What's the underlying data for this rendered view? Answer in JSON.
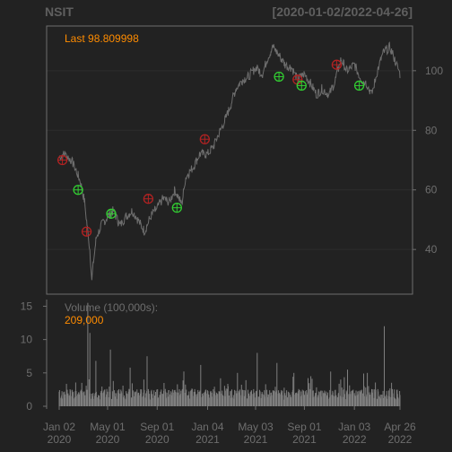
{
  "header": {
    "ticker": "NSIT",
    "date_range": "[2020-01-02/2022-04-26]"
  },
  "chart_data": [
    {
      "type": "line",
      "title": "NSIT",
      "subtitle": "[2020-01-02/2022-04-26]",
      "annotation": "Last 98.809998",
      "x_tick_labels": [
        [
          "Jan 02",
          "2020"
        ],
        [
          "May 01",
          "2020"
        ],
        [
          "Sep 01",
          "2020"
        ],
        [
          "Jan 04",
          "2021"
        ],
        [
          "May 03",
          "2021"
        ],
        [
          "Sep 01",
          "2021"
        ],
        [
          "Jan 03",
          "2022"
        ],
        [
          "Apr 26",
          "2022"
        ]
      ],
      "x_ticks": [
        "2020-01-02",
        "2020-05-01",
        "2020-09-01",
        "2021-01-04",
        "2021-05-03",
        "2021-09-01",
        "2022-01-03",
        "2022-04-26"
      ],
      "xlim": [
        "2020-01-02",
        "2022-04-26"
      ],
      "ylim": [
        25,
        115
      ],
      "y_ticks": [
        40,
        60,
        80,
        100
      ],
      "grid": true,
      "series": [
        {
          "x": [
            "2020-01-02",
            "2020-01-15",
            "2020-02-01",
            "2020-02-15",
            "2020-02-25",
            "2020-03-05",
            "2020-03-12",
            "2020-03-18",
            "2020-03-23",
            "2020-03-27",
            "2020-04-03",
            "2020-04-15",
            "2020-05-01",
            "2020-05-15",
            "2020-06-01",
            "2020-06-15",
            "2020-07-01",
            "2020-07-15",
            "2020-08-01",
            "2020-08-15",
            "2020-09-01",
            "2020-09-15",
            "2020-10-01",
            "2020-10-15",
            "2020-11-01",
            "2020-11-10",
            "2020-11-20",
            "2020-12-01",
            "2020-12-15",
            "2021-01-04",
            "2021-01-20",
            "2021-02-01",
            "2021-02-15",
            "2021-03-01",
            "2021-03-15",
            "2021-04-01",
            "2021-04-15",
            "2021-05-03",
            "2021-05-20",
            "2021-06-01",
            "2021-06-15",
            "2021-07-01",
            "2021-07-15",
            "2021-08-01",
            "2021-08-15",
            "2021-09-01",
            "2021-09-15",
            "2021-10-01",
            "2021-10-15",
            "2021-11-01",
            "2021-11-15",
            "2021-12-01",
            "2021-12-15",
            "2022-01-03",
            "2022-01-20",
            "2022-02-01",
            "2022-02-15",
            "2022-03-01",
            "2022-03-15",
            "2022-04-01",
            "2022-04-15",
            "2022-04-26"
          ],
          "values": [
            71,
            72,
            70,
            66,
            62,
            56,
            47,
            40,
            30,
            36,
            44,
            48,
            51,
            53,
            48,
            51,
            53,
            50,
            46,
            51,
            54,
            57,
            56,
            60,
            55,
            64,
            66,
            68,
            72,
            72,
            75,
            79,
            83,
            88,
            94,
            97,
            98,
            101,
            99,
            104,
            108,
            105,
            102,
            101,
            97,
            99,
            96,
            92,
            94,
            92,
            96,
            104,
            100,
            102,
            97,
            96,
            92,
            100,
            106,
            108,
            103,
            98.81
          ]
        }
      ],
      "signals": [
        {
          "date": "2020-01-10",
          "value": 70,
          "color": "#b22222"
        },
        {
          "date": "2020-02-18",
          "value": 60,
          "color": "#32cd32"
        },
        {
          "date": "2020-03-10",
          "value": 46,
          "color": "#b22222"
        },
        {
          "date": "2020-05-10",
          "value": 52,
          "color": "#32cd32"
        },
        {
          "date": "2020-08-10",
          "value": 57,
          "color": "#b22222"
        },
        {
          "date": "2020-10-20",
          "value": 54,
          "color": "#32cd32"
        },
        {
          "date": "2020-12-28",
          "value": 77,
          "color": "#b22222"
        },
        {
          "date": "2021-06-30",
          "value": 98,
          "color": "#32cd32"
        },
        {
          "date": "2021-08-15",
          "value": 97,
          "color": "#b22222"
        },
        {
          "date": "2021-08-25",
          "value": 95,
          "color": "#32cd32"
        },
        {
          "date": "2021-11-20",
          "value": 102,
          "color": "#b22222"
        },
        {
          "date": "2022-01-15",
          "value": 95,
          "color": "#32cd32"
        }
      ],
      "colors": {
        "line": "#6e6e6e",
        "annotation": "#ff8c00",
        "text": "#6e6e6e",
        "border": "#6e6e6e",
        "grid": "#2c2c2c"
      }
    },
    {
      "type": "bar",
      "label": "Volume (100,000s):",
      "last_value": "209,000",
      "ylim": [
        0,
        16
      ],
      "y_ticks": [
        0,
        5,
        10,
        15
      ],
      "spikes": [
        {
          "date": "2020-03-13",
          "value": 15.5
        },
        {
          "date": "2020-03-18",
          "value": 11.0
        },
        {
          "date": "2020-04-02",
          "value": 6.8
        },
        {
          "date": "2020-05-08",
          "value": 8.5
        },
        {
          "date": "2020-06-26",
          "value": 5.8
        },
        {
          "date": "2020-08-07",
          "value": 7.5
        },
        {
          "date": "2020-09-18",
          "value": 3.5
        },
        {
          "date": "2020-11-06",
          "value": 5.2
        },
        {
          "date": "2020-12-18",
          "value": 6.2
        },
        {
          "date": "2021-02-05",
          "value": 4.2
        },
        {
          "date": "2021-03-19",
          "value": 5.0
        },
        {
          "date": "2021-05-07",
          "value": 8.0
        },
        {
          "date": "2021-06-25",
          "value": 6.5
        },
        {
          "date": "2021-08-06",
          "value": 5.0
        },
        {
          "date": "2021-09-17",
          "value": 4.5
        },
        {
          "date": "2021-11-05",
          "value": 5.2
        },
        {
          "date": "2021-12-17",
          "value": 5.5
        },
        {
          "date": "2022-02-04",
          "value": 5.0
        },
        {
          "date": "2022-03-18",
          "value": 12.0
        }
      ],
      "baseline_range": [
        1.0,
        2.6
      ],
      "colors": {
        "bar": "#7f7f7f",
        "text": "#6e6e6e",
        "last_value": "#ff8c00"
      }
    }
  ]
}
